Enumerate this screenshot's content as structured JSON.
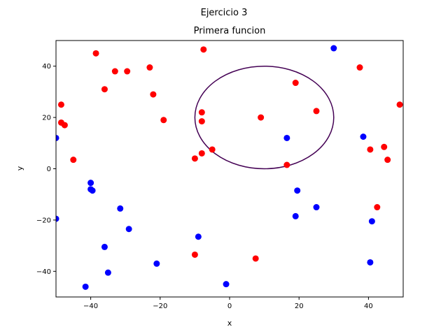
{
  "chart_data": {
    "type": "scatter",
    "suptitle": "Ejercicio 3",
    "title": "Primera funcion",
    "xlabel": "x",
    "ylabel": "y",
    "xlim": [
      -50,
      50
    ],
    "ylim": [
      -50,
      50
    ],
    "xticks": [
      -40,
      -20,
      0,
      20,
      40
    ],
    "yticks": [
      -40,
      -20,
      0,
      20,
      40
    ],
    "xtick_labels": [
      "−40",
      "−20",
      "0",
      "20",
      "40"
    ],
    "ytick_labels": [
      "−40",
      "−20",
      "0",
      "20",
      "40"
    ],
    "grid": false,
    "legend": "none",
    "contour": {
      "shape": "circle",
      "center": [
        10,
        20
      ],
      "radius": 20,
      "color": "#440154"
    },
    "series": [
      {
        "color": "#ff0000",
        "points": [
          [
            -38.5,
            45
          ],
          [
            -7.5,
            46.5
          ],
          [
            -33,
            38
          ],
          [
            -29.5,
            38
          ],
          [
            -23,
            39.5
          ],
          [
            -36,
            31
          ],
          [
            -22,
            29
          ],
          [
            -48.5,
            25
          ],
          [
            -48.5,
            18
          ],
          [
            -47.5,
            17
          ],
          [
            -19,
            19
          ],
          [
            -8,
            22
          ],
          [
            -8,
            18.5
          ],
          [
            -45,
            3.5
          ],
          [
            -10,
            4
          ],
          [
            -8,
            6
          ],
          [
            -5,
            7.5
          ],
          [
            19,
            33.5
          ],
          [
            25,
            22.5
          ],
          [
            9,
            20
          ],
          [
            16.5,
            1.5
          ],
          [
            37.5,
            39.5
          ],
          [
            49,
            25
          ],
          [
            40.5,
            7.5
          ],
          [
            44.5,
            8.5
          ],
          [
            45.5,
            3.5
          ],
          [
            42.5,
            -15
          ],
          [
            -10,
            -33.5
          ],
          [
            7.5,
            -35
          ]
        ]
      },
      {
        "color": "#0000ff",
        "points": [
          [
            30,
            47
          ],
          [
            -50,
            12
          ],
          [
            16.5,
            12
          ],
          [
            38.5,
            12.5
          ],
          [
            -40,
            -5.5
          ],
          [
            -40,
            -8
          ],
          [
            -39.5,
            -8.5
          ],
          [
            19.5,
            -8.5
          ],
          [
            25,
            -15
          ],
          [
            -50,
            -19.5
          ],
          [
            -31.5,
            -15.5
          ],
          [
            -29,
            -23.5
          ],
          [
            19,
            -18.5
          ],
          [
            41,
            -20.5
          ],
          [
            -9,
            -26.5
          ],
          [
            -36,
            -30.5
          ],
          [
            -21,
            -37
          ],
          [
            -35,
            -40.5
          ],
          [
            40.5,
            -36.5
          ],
          [
            -41.5,
            -46
          ],
          [
            -1,
            -45
          ]
        ]
      }
    ]
  }
}
